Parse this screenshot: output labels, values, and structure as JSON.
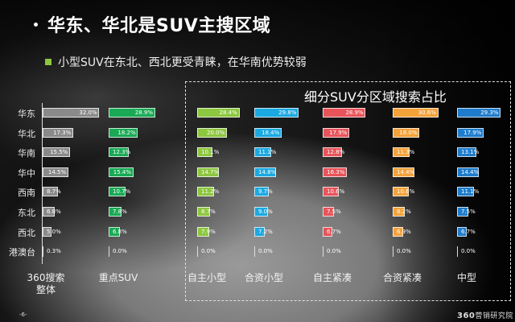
{
  "slide": {
    "title": "华东、华北是SUV主搜区域",
    "subtitle": "小型SUV在东北、西北更受青睐，在华南优势较弱",
    "box_title": "细分SUV分区域搜索占比",
    "page_number": "-6-",
    "logo_num": "360",
    "logo_text": "营销研究院"
  },
  "chart_data": {
    "type": "bar",
    "orientation": "horizontal",
    "title": "细分SUV分区域搜索占比",
    "categories": [
      "华东",
      "华北",
      "华南",
      "华中",
      "西南",
      "东北",
      "西北",
      "港澳台"
    ],
    "series": [
      {
        "name": "360搜索整体",
        "color": "#8a8a8a",
        "values": [
          32.0,
          17.3,
          15.5,
          14.5,
          8.7,
          6.8,
          5.0,
          0.3
        ]
      },
      {
        "name": "重点SUV",
        "color": "#1aaa55",
        "values": [
          28.9,
          18.2,
          12.3,
          15.4,
          10.7,
          7.8,
          6.8,
          0.0
        ]
      },
      {
        "name": "自主小型",
        "color": "#8dc63f",
        "values": [
          28.4,
          20.0,
          10.1,
          14.7,
          11.2,
          8.7,
          7.9,
          0.0
        ]
      },
      {
        "name": "合资小型",
        "color": "#1ba9e1",
        "values": [
          29.8,
          18.4,
          11.1,
          14.8,
          9.7,
          9.0,
          7.2,
          0.0
        ]
      },
      {
        "name": "自主紧凑",
        "color": "#e8545a",
        "values": [
          28.9,
          17.9,
          12.8,
          16.3,
          10.6,
          7.5,
          6.7,
          0.0
        ]
      },
      {
        "name": "合资紧凑",
        "color": "#f4a23a",
        "values": [
          30.6,
          18.0,
          11.3,
          14.4,
          10.6,
          8.2,
          6.9,
          0.0
        ]
      },
      {
        "name": "中型",
        "color": "#1f7ccc",
        "values": [
          29.3,
          17.9,
          13.1,
          14.4,
          11.1,
          7.5,
          6.7,
          0.0
        ]
      }
    ],
    "column_labels": [
      "360搜索\n整体",
      "重点SUV",
      "自主小型",
      "合资小型",
      "自主紧凑",
      "合资紧凑",
      "中型"
    ],
    "unit": "%",
    "grid": false,
    "legend": "none"
  }
}
